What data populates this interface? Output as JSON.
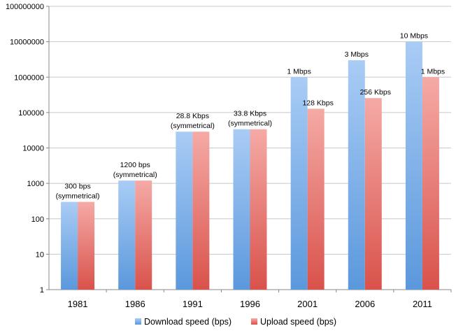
{
  "chart_data": {
    "type": "bar",
    "yscale": "log",
    "ylim": [
      1,
      100000000
    ],
    "grid": true,
    "legend_position": "bottom",
    "categories": [
      "1981",
      "1986",
      "1991",
      "1996",
      "2001",
      "2006",
      "2011"
    ],
    "y_tick_labels": [
      "1",
      "10",
      "100",
      "1000",
      "10000",
      "100000",
      "1000000",
      "10000000",
      "100000000"
    ],
    "series": [
      {
        "name": "Download speed (bps)",
        "color_top": "#a9ccf5",
        "color_bottom": "#5b98dc",
        "values": [
          300,
          1200,
          28800,
          33800,
          1000000,
          3000000,
          10000000
        ],
        "labels": [
          "300 bps (symmetrical)",
          "1200 bps (symmetrical)",
          "28.8 Kbps (symmetrical)",
          "33.8 Kbps (symmetrical)",
          "1 Mbps",
          "3 Mbps",
          "10 Mbps"
        ]
      },
      {
        "name": "Upload speed (bps)",
        "color_top": "#f5aaa6",
        "color_bottom": "#d9524b",
        "values": [
          300,
          1200,
          28800,
          33800,
          128000,
          256000,
          1000000
        ],
        "labels": [
          "",
          "",
          "",
          "",
          "128 Kbps",
          "256 Kbps",
          "1 Mbps"
        ]
      }
    ]
  }
}
